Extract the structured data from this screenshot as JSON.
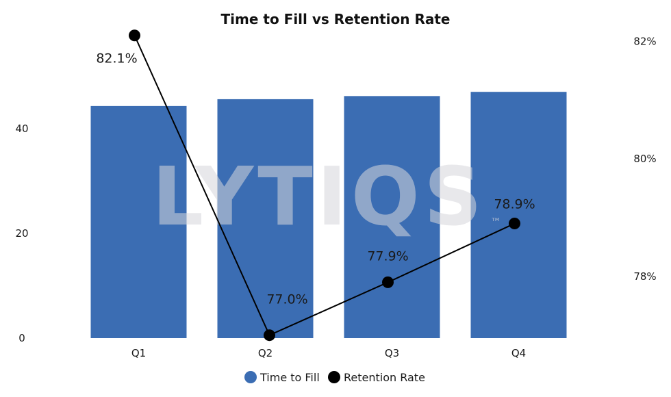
{
  "chart_data": {
    "type": "bar",
    "title": "Time to Fill vs Retention Rate",
    "categories": [
      "Q1",
      "Q2",
      "Q3",
      "Q4"
    ],
    "series": [
      {
        "name": "Time to Fill",
        "kind": "bar",
        "axis": "left",
        "color": "#3b6db3",
        "values": [
          44.3,
          45.6,
          46.2,
          47.0
        ]
      },
      {
        "name": "Retention Rate",
        "kind": "line",
        "axis": "right",
        "color": "#000000",
        "values": [
          82.1,
          77.0,
          77.9,
          78.9
        ],
        "labels": [
          "82.1%",
          "77.0%",
          "77.9%",
          "78.9%"
        ]
      }
    ],
    "y_left": {
      "ticks": [
        "0",
        "20",
        "40"
      ],
      "tick_values": [
        0,
        20,
        40
      ],
      "ylim": [
        0,
        58
      ]
    },
    "y_right": {
      "ticks": [
        "78%",
        "80%",
        "82%"
      ],
      "tick_values": [
        78,
        80,
        82
      ],
      "ylim": [
        76.95,
        82.12
      ]
    },
    "legend": {
      "position": "bottom",
      "items": [
        {
          "label": "Time to Fill",
          "color": "#3b6db3"
        },
        {
          "label": "Retention Rate",
          "color": "#000000"
        }
      ]
    },
    "grid": false
  },
  "watermark": {
    "text": "LYTIQS",
    "mark": "™"
  }
}
